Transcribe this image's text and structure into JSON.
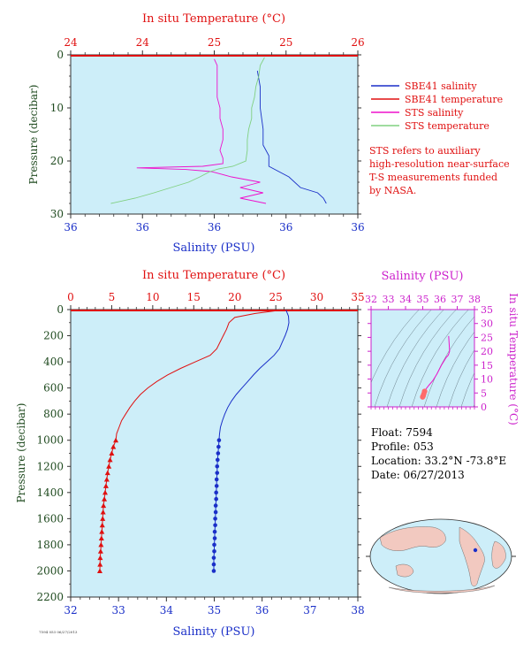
{
  "colors": {
    "plot_bg": "#cdeef9",
    "salinity": "#1a2fc8",
    "temperature": "#e01010",
    "sts_salinity": "#ee10cc",
    "sts_temperature": "#80d080",
    "axis_green": "#1f4a1f",
    "magenta": "#cc22cc"
  },
  "legend": {
    "items": [
      {
        "label": "SBE41 salinity",
        "color": "#1a2fc8"
      },
      {
        "label": "SBE41 temperature",
        "color": "#e01010"
      },
      {
        "label": "STS salinity",
        "color": "#ee10cc"
      },
      {
        "label": "STS temperature",
        "color": "#80d080"
      }
    ],
    "note": [
      "STS refers to auxiliary",
      "high-resolution near-surface",
      "T-S measurements funded",
      "by NASA."
    ]
  },
  "float_info": {
    "float": "Float:  7594",
    "profile": "Profile:  053",
    "location": "Location:  33.2°N  -73.8°E",
    "date": "Date:  06/27/2013"
  },
  "footer_code": "7594 053 06/27/2013",
  "chart_data": [
    {
      "type": "line",
      "id": "near-surface",
      "top_label": "In situ Temperature (°C)",
      "top_ticks": [
        "24",
        "24",
        "25",
        "25",
        "26"
      ],
      "bottom_label": "Salinity (PSU)",
      "bottom_ticks": [
        "36",
        "36",
        "36",
        "36",
        "36"
      ],
      "ylabel": "Pressure (decibar)",
      "ylim": [
        30,
        0
      ],
      "yticks": [
        0,
        10,
        20,
        30
      ],
      "temp_lim": [
        24.0,
        26.0
      ],
      "sal_lim": [
        35.8,
        36.8
      ],
      "series": [
        {
          "name": "SBE41 salinity",
          "var": "sal",
          "pressure": [
            3,
            6,
            10,
            14,
            17,
            19,
            21,
            23,
            25,
            26,
            27,
            28
          ],
          "values": [
            36.45,
            36.46,
            36.46,
            36.47,
            36.47,
            36.49,
            36.49,
            36.56,
            36.6,
            36.66,
            36.68,
            36.69
          ]
        },
        {
          "name": "SBE41 temperature",
          "var": "temp",
          "pressure": [
            0.3
          ],
          "values": [
            25.3
          ]
        },
        {
          "name": "STS salinity",
          "var": "sal",
          "pressure": [
            0.8,
            2,
            4,
            6,
            8,
            10,
            12,
            14,
            16,
            18,
            19.5,
            20.5,
            21,
            21.3,
            21.6,
            22,
            23,
            24,
            25,
            26,
            27,
            28
          ],
          "values": [
            36.3,
            36.31,
            36.31,
            36.31,
            36.31,
            36.32,
            36.32,
            36.33,
            36.33,
            36.32,
            36.33,
            36.33,
            36.26,
            36.03,
            36.2,
            36.29,
            36.36,
            36.46,
            36.39,
            36.47,
            36.39,
            36.48
          ]
        },
        {
          "name": "STS temperature",
          "var": "temp",
          "pressure": [
            0.5,
            2,
            4,
            6,
            8,
            10,
            12,
            14,
            16,
            18,
            20,
            21,
            21.5,
            22,
            23,
            24,
            25,
            26,
            27,
            28
          ],
          "values": [
            25.35,
            25.32,
            25.31,
            25.29,
            25.28,
            25.26,
            25.26,
            25.24,
            25.23,
            25.23,
            25.22,
            25.13,
            25.03,
            24.97,
            24.9,
            24.82,
            24.7,
            24.58,
            24.45,
            24.28
          ]
        }
      ]
    },
    {
      "type": "line",
      "id": "full-profile",
      "top_label": "In situ Temperature (°C)",
      "top_ticks": [
        "0",
        "5",
        "10",
        "15",
        "20",
        "25",
        "30",
        "35"
      ],
      "bottom_label": "Salinity (PSU)",
      "bottom_ticks": [
        "32",
        "33",
        "34",
        "35",
        "36",
        "37",
        "38"
      ],
      "ylabel": "Pressure (decibar)",
      "ylim": [
        2200,
        0
      ],
      "yticks": [
        0,
        200,
        400,
        600,
        800,
        1000,
        1200,
        1400,
        1600,
        1800,
        2000,
        2200
      ],
      "temp_lim": [
        0,
        35
      ],
      "sal_lim": [
        32,
        38
      ],
      "series": [
        {
          "name": "SBE41 salinity",
          "var": "sal",
          "marker": "circle",
          "pressure": [
            5,
            50,
            100,
            150,
            200,
            250,
            300,
            350,
            400,
            450,
            500,
            550,
            600,
            650,
            700,
            750,
            800,
            850,
            900,
            950,
            1000,
            1050,
            1100,
            1150,
            1200,
            1250,
            1300,
            1350,
            1400,
            1450,
            1500,
            1550,
            1600,
            1650,
            1700,
            1750,
            1800,
            1850,
            1900,
            1950,
            2000
          ],
          "values": [
            36.5,
            36.55,
            36.56,
            36.53,
            36.48,
            36.42,
            36.36,
            36.25,
            36.1,
            35.95,
            35.82,
            35.7,
            35.58,
            35.46,
            35.36,
            35.28,
            35.22,
            35.17,
            35.13,
            35.11,
            35.1,
            35.09,
            35.08,
            35.07,
            35.06,
            35.06,
            35.05,
            35.05,
            35.04,
            35.04,
            35.03,
            35.03,
            35.02,
            35.02,
            35.01,
            35.01,
            35.0,
            35.0,
            34.99,
            34.99,
            34.99
          ],
          "markers_from": 1000
        },
        {
          "name": "SBE41 temperature",
          "var": "temp",
          "marker": "triangle",
          "pressure": [
            5,
            30,
            60,
            100,
            150,
            200,
            250,
            300,
            350,
            400,
            450,
            500,
            550,
            600,
            650,
            700,
            750,
            800,
            850,
            900,
            950,
            1000,
            1050,
            1100,
            1150,
            1200,
            1250,
            1300,
            1350,
            1400,
            1450,
            1500,
            1550,
            1600,
            1650,
            1700,
            1750,
            1800,
            1850,
            1900,
            1950,
            2000
          ],
          "values": [
            25.5,
            22.5,
            20.0,
            19.3,
            19.0,
            18.6,
            18.2,
            17.8,
            17.0,
            15.2,
            13.4,
            11.8,
            10.5,
            9.4,
            8.5,
            7.8,
            7.2,
            6.7,
            6.2,
            5.9,
            5.6,
            5.5,
            5.2,
            5.0,
            4.8,
            4.65,
            4.5,
            4.4,
            4.3,
            4.2,
            4.1,
            4.0,
            3.95,
            3.9,
            3.85,
            3.8,
            3.75,
            3.7,
            3.65,
            3.6,
            3.58,
            3.55
          ],
          "markers_from": 1000
        }
      ]
    },
    {
      "type": "scatter",
      "id": "ts-diagram",
      "top_label": "Salinity (PSU)",
      "top_ticks": [
        "32",
        "33",
        "34",
        "35",
        "36",
        "37",
        "38"
      ],
      "right_label": "In situ Temperature (°C)",
      "right_ticks": [
        "0",
        "5",
        "10",
        "15",
        "20",
        "25",
        "30",
        "35"
      ],
      "xlim": [
        32,
        38
      ],
      "ylim": [
        0,
        35
      ],
      "series": [
        {
          "name": "T-S profile",
          "x": [
            36.5,
            36.56,
            36.48,
            36.36,
            36.1,
            35.82,
            35.58,
            35.36,
            35.22,
            35.11,
            35.1,
            35.06,
            35.03,
            35.0,
            34.99
          ],
          "y": [
            25.5,
            20.0,
            18.6,
            17.8,
            15.2,
            11.8,
            9.4,
            7.8,
            6.7,
            5.6,
            5.5,
            4.65,
            4.0,
            3.7,
            3.55
          ]
        }
      ]
    }
  ]
}
